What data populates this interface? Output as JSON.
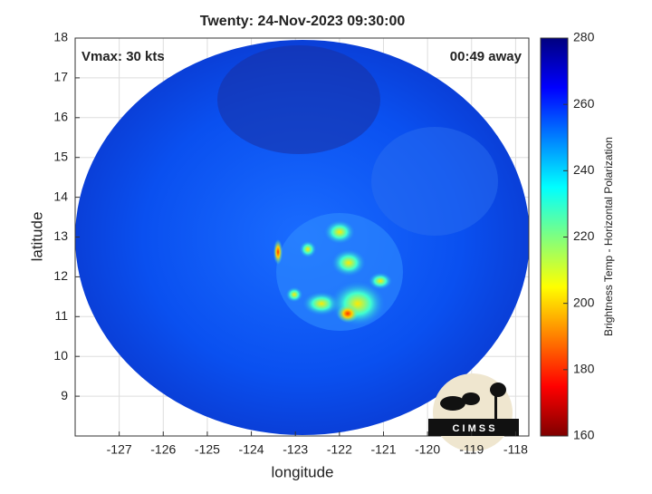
{
  "chart_data": {
    "type": "image",
    "title": "Twenty: 24-Nov-2023 09:30:00",
    "annotations": [
      "Vmax: 30 kts",
      "00:49 away"
    ],
    "xlabel": "longitude",
    "ylabel": "latitude",
    "xlim": [
      -128,
      -117.7
    ],
    "xticks": [
      -127,
      -126,
      -125,
      -124,
      -123,
      -122,
      -121,
      -120,
      -119,
      -118
    ],
    "ylim": [
      8,
      18
    ],
    "yticks": [
      9,
      10,
      11,
      12,
      13,
      14,
      15,
      16,
      17,
      18
    ],
    "grid": true,
    "colorbar": {
      "label": "Brightness Temp - Horizontal Polarization",
      "clim": [
        160,
        280
      ],
      "ticks": [
        160,
        180,
        200,
        220,
        240,
        260,
        280
      ]
    },
    "logo": "C I M S S"
  }
}
